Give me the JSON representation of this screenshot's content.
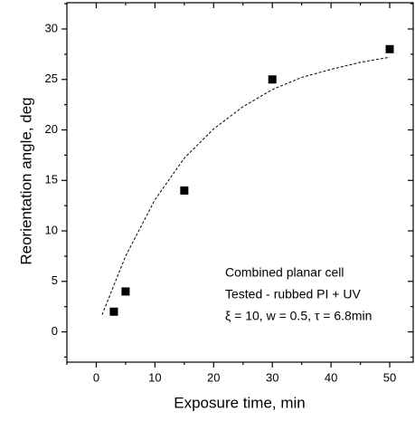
{
  "chart_data": {
    "type": "scatter",
    "x_label": "Exposure time, min",
    "y_label": "Reorientation angle, deg",
    "points": {
      "color": "#000000",
      "x": [
        3,
        5,
        15,
        30,
        50
      ],
      "y": [
        2,
        4,
        14,
        25,
        28
      ]
    },
    "fit": {
      "color": "#000000",
      "dashed": true,
      "x": [
        1,
        5,
        10,
        15,
        20,
        25,
        30,
        35,
        40,
        45,
        50
      ],
      "y": [
        1.7,
        7.5,
        13.1,
        17.2,
        20.1,
        22.3,
        24.0,
        25.2,
        26.0,
        26.7,
        27.2
      ]
    },
    "annotations": [
      "Combined planar cell",
      "Tested - rubbed PI + UV",
      "ξ  = 10, w = 0.5, τ = 6.8min"
    ],
    "xlim": [
      -5,
      54
    ],
    "ylim": [
      -3,
      32.6
    ],
    "xticks": [
      0,
      10,
      20,
      30,
      40,
      50
    ],
    "yticks": [
      0,
      5,
      10,
      15,
      20,
      25,
      30
    ],
    "xminorticks": [
      -5,
      5,
      15,
      25,
      35,
      45
    ],
    "yminorticks": [
      -2.5,
      2.5,
      7.5,
      12.5,
      17.5,
      22.5,
      27.5,
      32.5
    ],
    "grid": false
  }
}
